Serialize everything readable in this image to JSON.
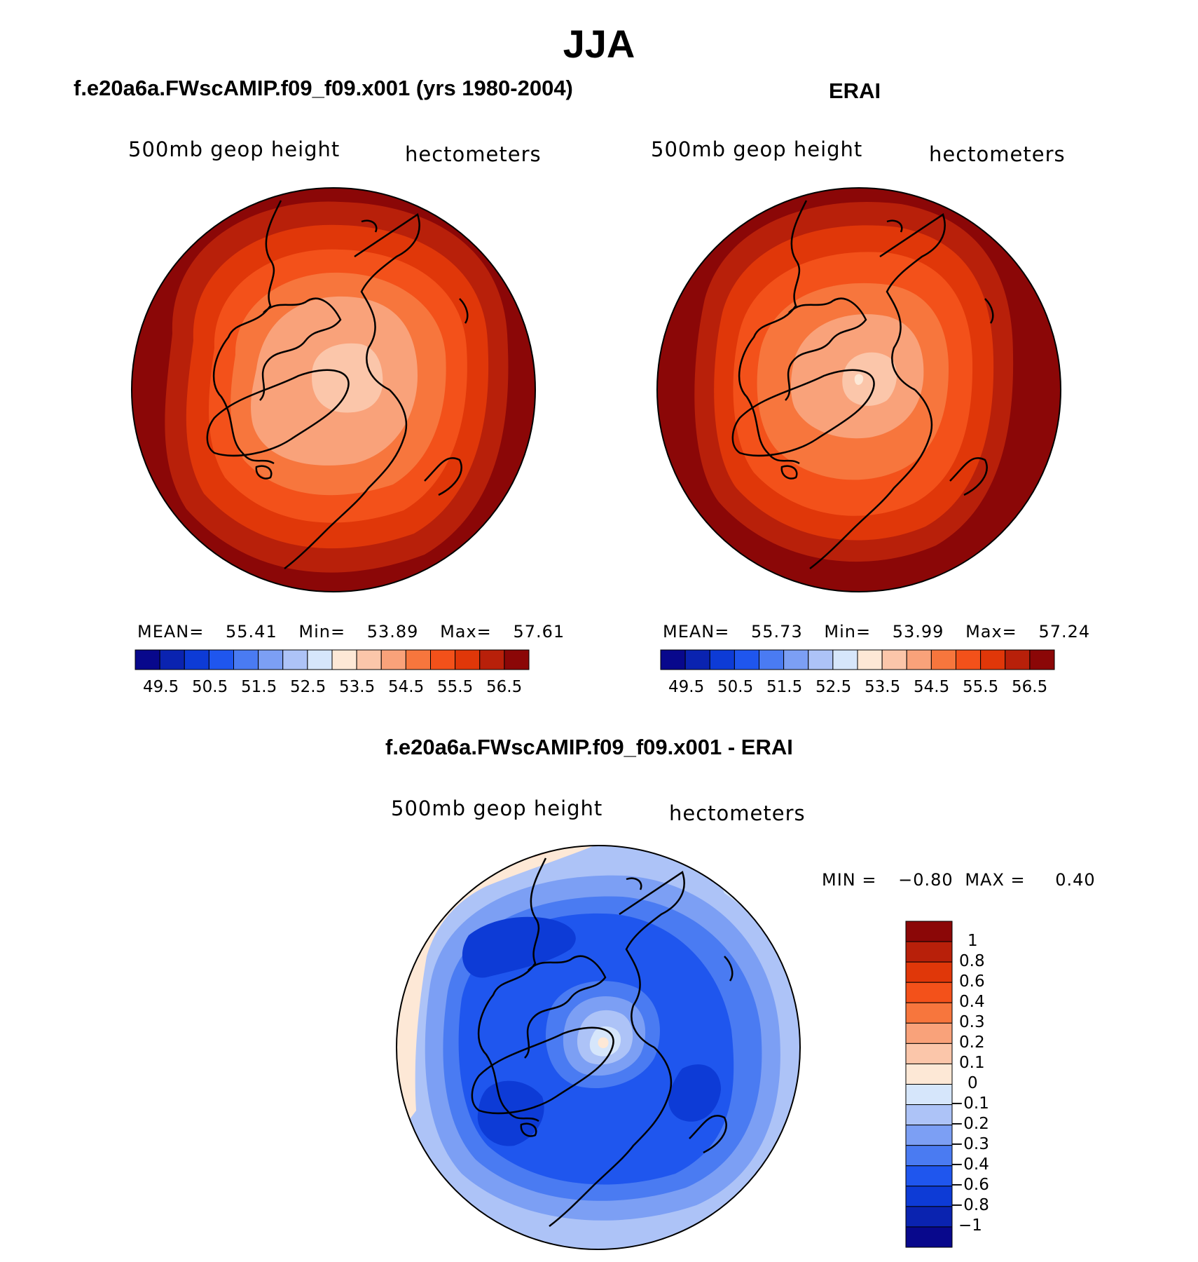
{
  "season": "JJA",
  "panels": [
    {
      "case_title": "f.e20a6a.FWscAMIP.f09_f09.x001 (yrs 1980-2004)",
      "variable": "500mb geop height",
      "units": "hectometers",
      "mean_label": "MEAN=",
      "mean": "55.41",
      "min_label": "Min=",
      "min": "53.89",
      "max_label": "Max=",
      "max": "57.61"
    },
    {
      "case_title": "ERAI",
      "variable": "500mb geop height",
      "units": "hectometers",
      "mean_label": "MEAN=",
      "mean": "55.73",
      "min_label": "Min=",
      "min": "53.99",
      "max_label": "Max=",
      "max": "57.24"
    }
  ],
  "diff": {
    "title": "f.e20a6a.FWscAMIP.f09_f09.x001 - ERAI",
    "variable": "500mb geop height",
    "units": "hectometers",
    "min_label": "MIN =",
    "min": "−0.80",
    "max_label": "MAX =",
    "max": "0.40"
  },
  "colorbar_full": {
    "colors": [
      "#08088c",
      "#0a23b0",
      "#0d3bd6",
      "#1f56ee",
      "#4a7bf2",
      "#7c9ff4",
      "#adc3f7",
      "#d6e6fb",
      "#fde8d6",
      "#fbc6aa",
      "#f9a27a",
      "#f7763d",
      "#f3511a",
      "#e03709",
      "#b8200a",
      "#8b0707"
    ],
    "tick_labels": [
      "49.5",
      "50.5",
      "51.5",
      "52.5",
      "53.5",
      "54.5",
      "55.5",
      "56.5"
    ]
  },
  "colorbar_diff": {
    "colors": [
      "#8b0707",
      "#b8200a",
      "#e03709",
      "#f3511a",
      "#f7763d",
      "#f9a27a",
      "#fbc6aa",
      "#fde8d6",
      "#d6e6fb",
      "#adc3f7",
      "#7c9ff4",
      "#4a7bf2",
      "#1f56ee",
      "#0d3bd6",
      "#0a23b0",
      "#08088c"
    ],
    "tick_labels": [
      "1",
      "0.8",
      "0.6",
      "0.4",
      "0.3",
      "0.2",
      "0.1",
      "0",
      "−0.1",
      "−0.2",
      "−0.3",
      "−0.4",
      "−0.6",
      "−0.8",
      "−1"
    ]
  },
  "chart_data": [
    {
      "type": "heatmap",
      "title": "f.e20a6a.FWscAMIP.f09_f09.x001 (yrs 1980-2004)",
      "projection": "north polar stereographic",
      "variable": "500mb geop height",
      "units": "hectometers",
      "levels": [
        49.5,
        50,
        50.5,
        51,
        51.5,
        52,
        52.5,
        53,
        53.5,
        54,
        54.5,
        55,
        55.5,
        56,
        56.5
      ],
      "mean": 55.41,
      "min": 53.89,
      "max": 57.61
    },
    {
      "type": "heatmap",
      "title": "ERAI",
      "projection": "north polar stereographic",
      "variable": "500mb geop height",
      "units": "hectometers",
      "levels": [
        49.5,
        50,
        50.5,
        51,
        51.5,
        52,
        52.5,
        53,
        53.5,
        54,
        54.5,
        55,
        55.5,
        56,
        56.5
      ],
      "mean": 55.73,
      "min": 53.99,
      "max": 57.24
    },
    {
      "type": "heatmap",
      "title": "f.e20a6a.FWscAMIP.f09_f09.x001 - ERAI",
      "projection": "north polar stereographic",
      "variable": "500mb geop height",
      "units": "hectometers",
      "levels": [
        -1,
        -0.8,
        -0.6,
        -0.4,
        -0.3,
        -0.2,
        -0.1,
        0,
        0.1,
        0.2,
        0.3,
        0.4,
        0.6,
        0.8,
        1
      ],
      "min": -0.8,
      "max": 0.4
    }
  ]
}
